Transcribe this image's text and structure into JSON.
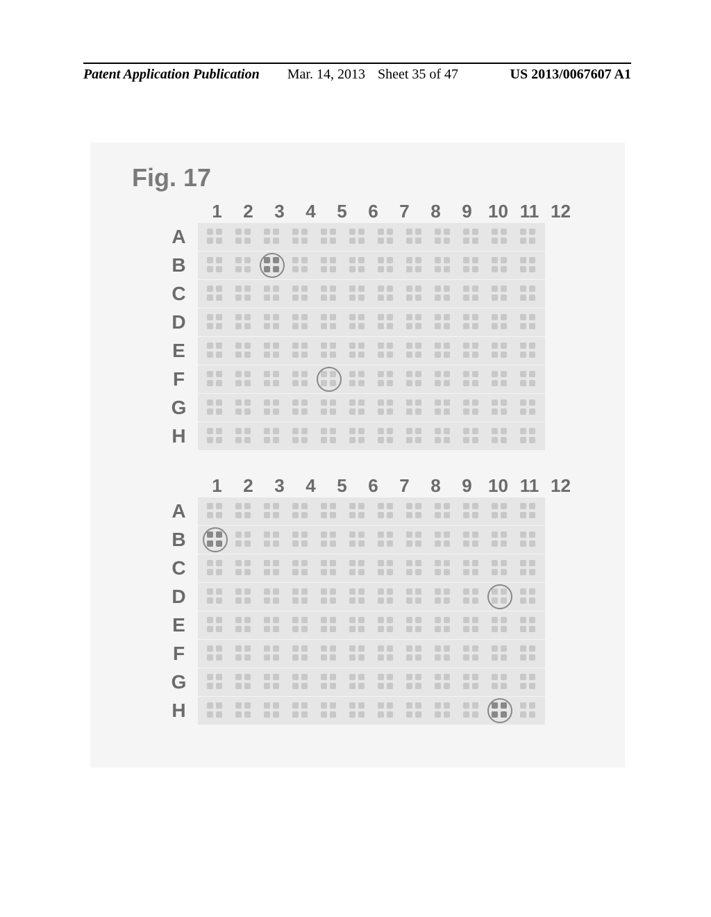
{
  "header": {
    "publication": "Patent Application Publication",
    "date": "Mar. 14, 2013",
    "sheet": "Sheet 35 of 47",
    "patent_no": "US 2013/0067607 A1"
  },
  "figure": {
    "label": "Fig. 17",
    "background_color": "#f5f5f5",
    "label_color": "#7a7a7a",
    "label_fontsize": 36
  },
  "plates": {
    "columns": [
      "1",
      "2",
      "3",
      "4",
      "5",
      "6",
      "7",
      "8",
      "9",
      "10",
      "11",
      "12"
    ],
    "rows": [
      "A",
      "B",
      "C",
      "D",
      "E",
      "F",
      "G",
      "H"
    ],
    "col_header_fontsize": 26,
    "row_label_fontsize": 28,
    "label_color": "#6b6b6b",
    "well_bg": "#e6e6e6",
    "dot_color": "#c8c8c8",
    "highlight_ring_color": "#888888",
    "top": {
      "highlighted": [
        {
          "row": "B",
          "col": 3,
          "dark": true
        },
        {
          "row": "F",
          "col": 5,
          "dark": false
        }
      ]
    },
    "bottom": {
      "highlighted": [
        {
          "row": "B",
          "col": 1,
          "dark": true
        },
        {
          "row": "D",
          "col": 11,
          "dark": false
        },
        {
          "row": "H",
          "col": 11,
          "dark": true
        }
      ]
    }
  }
}
